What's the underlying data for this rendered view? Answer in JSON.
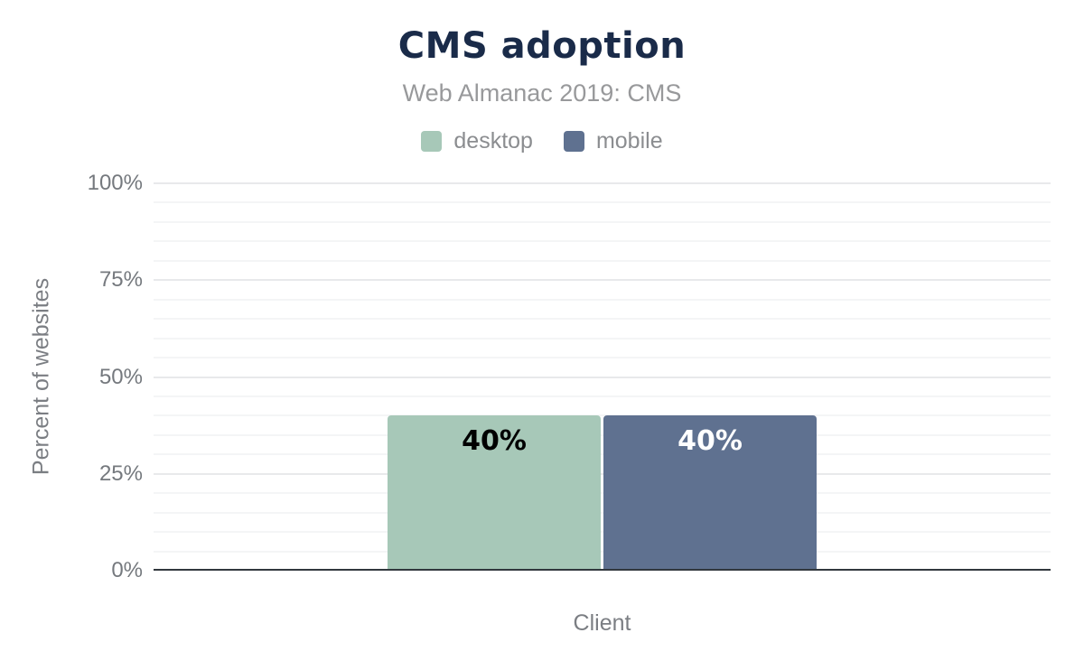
{
  "chart_data": {
    "type": "bar",
    "title": "CMS adoption",
    "subtitle": "Web Almanac 2019: CMS",
    "xlabel": "Client",
    "ylabel": "Percent of websites",
    "ylim": [
      0,
      100
    ],
    "ytick_labels": [
      "0%",
      "25%",
      "50%",
      "75%",
      "100%"
    ],
    "ytick_major_step": 25,
    "ytick_minor_step": 5,
    "grid": "horizontal",
    "legend_position": "top",
    "categories": [
      "Client"
    ],
    "series": [
      {
        "name": "desktop",
        "values": [
          40
        ],
        "data_labels": [
          "40%"
        ],
        "color": "#a7c8b8",
        "data_label_color": "#000000"
      },
      {
        "name": "mobile",
        "values": [
          40
        ],
        "data_labels": [
          "40%"
        ],
        "color": "#5f7190",
        "data_label_color": "#ffffff"
      }
    ]
  },
  "colors": {
    "background": "#ffffff",
    "title": "#1a2b49",
    "subtitle": "#98999b",
    "legend_label": "#8b8d90",
    "tick_label": "#75797e",
    "axis_title": "#7b7e83",
    "axis_line": "#32383e",
    "grid_major": "#e8e9eb",
    "grid_minor": "#f4f5f6"
  }
}
